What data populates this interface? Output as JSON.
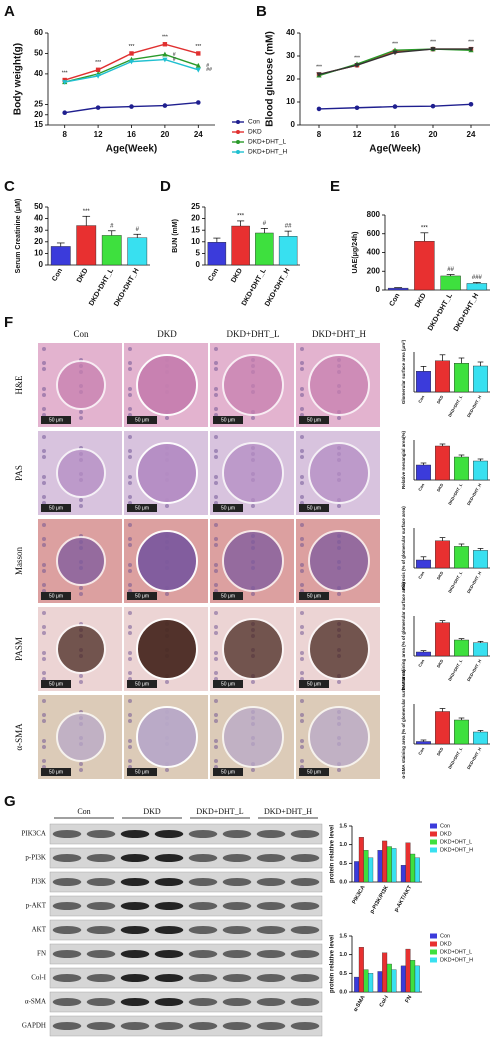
{
  "panel_labels": [
    "A",
    "B",
    "C",
    "D",
    "E",
    "F",
    "G"
  ],
  "chart_data": [
    {
      "type": "line",
      "x_label": "Age(Week)",
      "y_label": "Body weight(g)",
      "x": [
        8,
        12,
        16,
        20,
        24
      ],
      "xlim": [
        6,
        26
      ],
      "xticks": [
        8,
        12,
        16,
        20,
        24
      ],
      "ylim": [
        15,
        60
      ],
      "yticks": [
        15,
        20,
        25,
        40,
        50,
        60
      ],
      "legend": true,
      "series": [
        {
          "name": "Con",
          "color": "#1f1f8f",
          "marker": "circle",
          "values": [
            21,
            23.5,
            24,
            24.5,
            26
          ]
        },
        {
          "name": "DKD",
          "color": "#e03030",
          "marker": "square",
          "values": [
            37,
            42,
            50,
            54.5,
            50
          ],
          "significance": [
            "***",
            "***",
            "***",
            "***",
            "***"
          ]
        },
        {
          "name": "DKD+DHT_L",
          "color": "#2a9a2a",
          "marker": "triangle",
          "values": [
            36,
            40,
            47,
            49.5,
            44
          ],
          "significance": [
            null,
            null,
            null,
            "#",
            "#"
          ]
        },
        {
          "name": "DKD+DHT_H",
          "color": "#20c0d0",
          "marker": "triangle-down",
          "values": [
            36,
            39,
            46,
            47,
            42
          ],
          "significance": [
            null,
            null,
            null,
            "#",
            "##"
          ]
        }
      ]
    },
    {
      "type": "line",
      "x_label": "Age(Week)",
      "y_label": "Blood glucose (mM)",
      "x": [
        8,
        12,
        16,
        20,
        24
      ],
      "xlim": [
        6,
        26
      ],
      "xticks": [
        8,
        12,
        16,
        20,
        24
      ],
      "ylim": [
        0,
        40
      ],
      "yticks": [
        0,
        10,
        20,
        30,
        40
      ],
      "series": [
        {
          "color": "#1f1f8f",
          "marker": "circle",
          "values": [
            7,
            7.5,
            8,
            8.2,
            9
          ]
        },
        {
          "color": "#e03030",
          "marker": "square",
          "values": [
            22,
            26,
            32,
            33,
            33
          ],
          "significance": [
            "***",
            "***",
            "***",
            "***",
            "***"
          ]
        },
        {
          "color": "#2a9a2a",
          "marker": "triangle",
          "values": [
            21.5,
            26.5,
            32.5,
            33,
            32.5
          ]
        },
        {
          "color": "#333333",
          "marker": "triangle-down",
          "values": [
            22,
            26,
            31.5,
            33,
            33
          ]
        }
      ]
    },
    {
      "type": "bar",
      "y_label": "Serum Creatinine (μM)",
      "categories": [
        "Con",
        "DKD",
        "DKD+DHT_L",
        "DKD+DHT_H"
      ],
      "values": [
        16,
        34,
        25.5,
        23.5
      ],
      "errors": [
        3,
        8,
        4,
        3
      ],
      "significance": [
        null,
        "***",
        "#",
        "#"
      ],
      "colors": [
        "#3b3bdb",
        "#e83030",
        "#3ee03e",
        "#38e0f0"
      ],
      "ylim": [
        0,
        50
      ],
      "yticks": [
        0,
        10,
        20,
        30,
        40,
        50
      ]
    },
    {
      "type": "bar",
      "y_label": "BUN (mM)",
      "categories": [
        "Con",
        "DKD",
        "DKD+DHT_L",
        "DKD+DHT_H"
      ],
      "values": [
        9.8,
        16.8,
        13.8,
        12.4
      ],
      "errors": [
        1.8,
        2.2,
        2,
        2.2
      ],
      "significance": [
        null,
        "***",
        "#",
        "##"
      ],
      "colors": [
        "#3b3bdb",
        "#e83030",
        "#3ee03e",
        "#38e0f0"
      ],
      "ylim": [
        0,
        25
      ],
      "yticks": [
        0,
        5,
        10,
        15,
        20,
        25
      ]
    },
    {
      "type": "bar",
      "y_label": "UAE(μg/24h)",
      "categories": [
        "Con",
        "DKD",
        "DKD+DHT_L",
        "DKD+DHT_H"
      ],
      "values": [
        20,
        520,
        150,
        70
      ],
      "errors": [
        5,
        90,
        15,
        10
      ],
      "significance": [
        null,
        "***",
        "##",
        "###"
      ],
      "colors": [
        "#3b3bdb",
        "#e83030",
        "#3ee03e",
        "#38e0f0"
      ],
      "ylim": [
        0,
        800
      ],
      "yticks": [
        0,
        200,
        400,
        600,
        800
      ]
    },
    {
      "type": "bar",
      "y_label": "Glomerular surface area (μm²)",
      "categories": [
        "Con",
        "DKD",
        "DKD+DHT_L",
        "DKD+DHT_H"
      ],
      "values": [
        5200,
        7800,
        7200,
        6500
      ],
      "errors": [
        1200,
        1500,
        1300,
        1000
      ],
      "colors": [
        "#3b3bdb",
        "#e83030",
        "#3ee03e",
        "#38e0f0"
      ],
      "ylim": [
        0,
        10000
      ]
    },
    {
      "type": "bar",
      "y_label": "Relative mesangial area(%)",
      "categories": [
        "Con",
        "DKD",
        "DKD+DHT_L",
        "DKD+DHT_H"
      ],
      "values": [
        15,
        34,
        23,
        19
      ],
      "errors": [
        2,
        2,
        2,
        2
      ],
      "colors": [
        "#3b3bdb",
        "#e83030",
        "#3ee03e",
        "#38e0f0"
      ],
      "ylim": [
        0,
        40
      ]
    },
    {
      "type": "bar",
      "y_label": "Fibrosis (% of glomerular surface area)",
      "categories": [
        "Con",
        "DKD",
        "DKD+DHT_L",
        "DKD+DHT_H"
      ],
      "values": [
        5,
        17,
        13.5,
        11
      ],
      "errors": [
        2,
        2,
        1.5,
        1.2
      ],
      "colors": [
        "#3b3bdb",
        "#e83030",
        "#3ee03e",
        "#38e0f0"
      ],
      "ylim": [
        0,
        25
      ]
    },
    {
      "type": "bar",
      "y_label": "PASM staining area (% of glomerular surface area)",
      "categories": [
        "Con",
        "DKD",
        "DKD+DHT_L",
        "DKD+DHT_H"
      ],
      "values": [
        3,
        25,
        12,
        10
      ],
      "errors": [
        1,
        1.5,
        1,
        1
      ],
      "colors": [
        "#3b3bdb",
        "#e83030",
        "#3ee03e",
        "#38e0f0"
      ],
      "ylim": [
        0,
        30
      ]
    },
    {
      "type": "bar",
      "y_label": "α-SMA staining area (% of glomerular surface area)",
      "categories": [
        "Con",
        "DKD",
        "DKD+DHT_L",
        "DKD+DHT_H"
      ],
      "values": [
        0.5,
        6.5,
        4.8,
        2.4
      ],
      "errors": [
        0.3,
        0.6,
        0.4,
        0.3
      ],
      "colors": [
        "#3b3bdb",
        "#e83030",
        "#3ee03e",
        "#38e0f0"
      ],
      "ylim": [
        0,
        8
      ]
    },
    {
      "type": "grouped-bar",
      "y_label": "protein relative level",
      "categories": [
        "PIK3CA",
        "p-PI3K/PI3K",
        "p-AKT/AKT"
      ],
      "ylim": [
        0,
        1.5
      ],
      "yticks": [
        {
          "value": 0,
          "label": "0.0"
        },
        {
          "value": 0.5,
          "label": "0.5"
        },
        {
          "value": 1,
          "label": "1.0"
        },
        {
          "value": 1.5,
          "label": "1.5"
        }
      ],
      "legend": true,
      "series": [
        {
          "name": "Con",
          "color": "#3b3bdb",
          "values": [
            0.55,
            0.85,
            0.45
          ]
        },
        {
          "name": "DKD",
          "color": "#e83030",
          "values": [
            1.2,
            1.1,
            1.05
          ]
        },
        {
          "name": "DKD+DHT_L",
          "color": "#3ee03e",
          "values": [
            0.85,
            0.95,
            0.75
          ]
        },
        {
          "name": "DKD+DHT_H",
          "color": "#38e0f0",
          "values": [
            0.65,
            0.9,
            0.65
          ]
        }
      ]
    },
    {
      "type": "grouped-bar",
      "y_label": "protein relative level",
      "categories": [
        "α-SMA",
        "Col-I",
        "FN"
      ],
      "ylim": [
        0,
        1.5
      ],
      "yticks": [
        {
          "value": 0,
          "label": "0.0"
        },
        {
          "value": 0.5,
          "label": "0.5"
        },
        {
          "value": 1,
          "label": "1.0"
        },
        {
          "value": 1.5,
          "label": "1.5"
        }
      ],
      "legend": true,
      "series": [
        {
          "name": "Con",
          "color": "#3b3bdb",
          "values": [
            0.4,
            0.55,
            0.7
          ]
        },
        {
          "name": "DKD",
          "color": "#e83030",
          "values": [
            1.2,
            1.05,
            1.15
          ]
        },
        {
          "name": "DKD+DHT_L",
          "color": "#3ee03e",
          "values": [
            0.6,
            0.75,
            0.85
          ]
        },
        {
          "name": "DKD+DHT_H",
          "color": "#38e0f0",
          "values": [
            0.5,
            0.6,
            0.7
          ]
        }
      ]
    }
  ],
  "histology": {
    "columns": [
      "Con",
      "DKD",
      "DKD+DHT_L",
      "DKD+DHT_H"
    ],
    "rows": [
      "H&E",
      "PAS",
      "Masson",
      "PASM",
      "α-SMA"
    ],
    "scale_bar": "50 μm"
  },
  "western": {
    "columns": [
      "Con",
      "DKD",
      "DKD+DHT_L",
      "DKD+DHT_H"
    ],
    "rows": [
      "PIK3CA",
      "p-PI3K",
      "PI3K",
      "p-AKT",
      "AKT",
      "FN",
      "Col-I",
      "α-SMA",
      "GAPDH"
    ]
  }
}
